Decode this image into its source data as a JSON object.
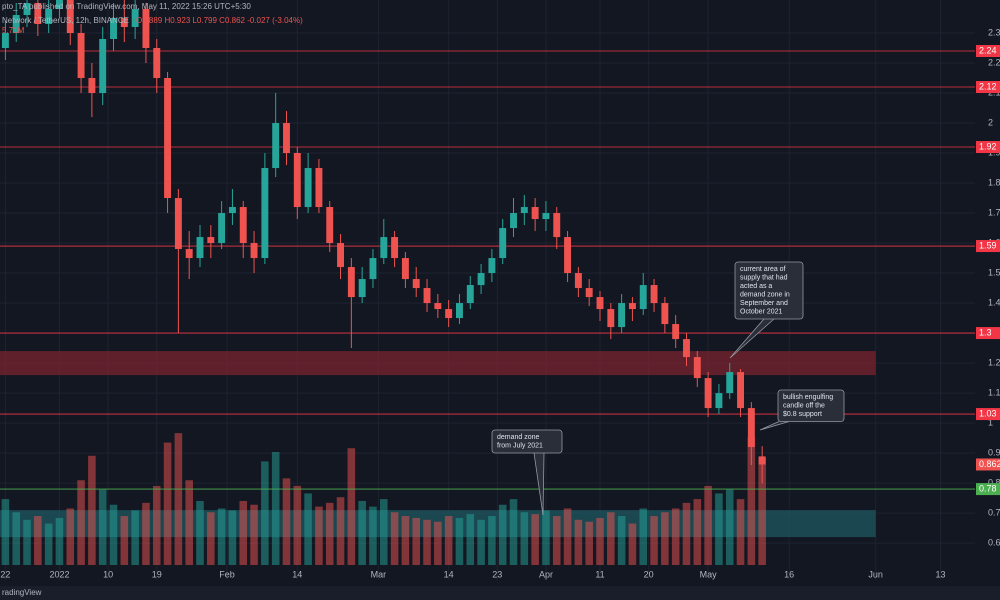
{
  "chart_data": {
    "type": "candlestick",
    "header": "pto_TA published on TradingView.com, May 11, 2022 15:26 UTC+5:30",
    "symbol": "Network / TetherUS, 12h, BINANCE",
    "ohlc_text": "O0.889 H0.923 L0.799 C0.862 -0.027 (-3.04%)",
    "volume_label": "5.71M",
    "footer": "radingView",
    "up_color": "#26a69a",
    "down_color": "#ef5350",
    "xlim": [
      "2021-12-21",
      "2022-06-24"
    ],
    "xticks": [
      {
        "value": "2021-12-22",
        "label": "22"
      },
      {
        "value": "2022-01-01",
        "label": "2022"
      },
      {
        "value": "2022-01-10",
        "label": "10"
      },
      {
        "value": "2022-01-19",
        "label": "19"
      },
      {
        "value": "2022-02-01",
        "label": "Feb"
      },
      {
        "value": "2022-02-14",
        "label": "14"
      },
      {
        "value": "2022-03-01",
        "label": "Mar"
      },
      {
        "value": "2022-03-14",
        "label": "14"
      },
      {
        "value": "2022-03-23",
        "label": "23"
      },
      {
        "value": "2022-04-01",
        "label": "Apr"
      },
      {
        "value": "2022-04-11",
        "label": "11"
      },
      {
        "value": "2022-04-20",
        "label": "20"
      },
      {
        "value": "2022-05-01",
        "label": "May"
      },
      {
        "value": "2022-05-16",
        "label": "16"
      },
      {
        "value": "2022-06-01",
        "label": "Jun"
      },
      {
        "value": "2022-06-13",
        "label": "13"
      }
    ],
    "ylim": [
      0.477,
      2.41
    ],
    "yticks": [
      0.6,
      0.7,
      0.8,
      0.9,
      1.0,
      1.1,
      1.2,
      1.3,
      1.4,
      1.5,
      1.6,
      1.7,
      1.8,
      1.9,
      2.0,
      2.1,
      2.2,
      2.3
    ],
    "grid": true,
    "volume_ylim": [
      0,
      30
    ],
    "x": [
      "2021-12-22",
      "2021-12-24",
      "2021-12-26",
      "2021-12-28",
      "2021-12-30",
      "2022-01-01",
      "2022-01-03",
      "2022-01-05",
      "2022-01-07",
      "2022-01-09",
      "2022-01-11",
      "2022-01-13",
      "2022-01-15",
      "2022-01-17",
      "2022-01-19",
      "2022-01-21",
      "2022-01-23",
      "2022-01-25",
      "2022-01-27",
      "2022-01-29",
      "2022-01-31",
      "2022-02-02",
      "2022-02-04",
      "2022-02-06",
      "2022-02-08",
      "2022-02-10",
      "2022-02-12",
      "2022-02-14",
      "2022-02-16",
      "2022-02-18",
      "2022-02-20",
      "2022-02-22",
      "2022-02-24",
      "2022-02-26",
      "2022-02-28",
      "2022-03-02",
      "2022-03-04",
      "2022-03-06",
      "2022-03-08",
      "2022-03-10",
      "2022-03-12",
      "2022-03-14",
      "2022-03-16",
      "2022-03-18",
      "2022-03-20",
      "2022-03-22",
      "2022-03-24",
      "2022-03-26",
      "2022-03-28",
      "2022-03-30",
      "2022-04-01",
      "2022-04-03",
      "2022-04-05",
      "2022-04-07",
      "2022-04-09",
      "2022-04-11",
      "2022-04-13",
      "2022-04-15",
      "2022-04-17",
      "2022-04-19",
      "2022-04-21",
      "2022-04-23",
      "2022-04-25",
      "2022-04-27",
      "2022-04-29",
      "2022-05-01",
      "2022-05-03",
      "2022-05-05",
      "2022-05-07",
      "2022-05-09",
      "2022-05-11"
    ],
    "candles": [
      [
        2.25,
        2.34,
        2.21,
        2.3
      ],
      [
        2.3,
        2.4,
        2.27,
        2.36
      ],
      [
        2.36,
        2.44,
        2.32,
        2.4
      ],
      [
        2.4,
        2.43,
        2.29,
        2.33
      ],
      [
        2.33,
        2.42,
        2.3,
        2.38
      ],
      [
        2.38,
        2.46,
        2.35,
        2.42
      ],
      [
        2.42,
        2.44,
        2.26,
        2.3
      ],
      [
        2.3,
        2.33,
        2.1,
        2.15
      ],
      [
        2.15,
        2.2,
        2.02,
        2.1
      ],
      [
        2.1,
        2.32,
        2.06,
        2.28
      ],
      [
        2.28,
        2.4,
        2.24,
        2.35
      ],
      [
        2.35,
        2.41,
        2.27,
        2.32
      ],
      [
        2.32,
        2.43,
        2.28,
        2.38
      ],
      [
        2.38,
        2.4,
        2.2,
        2.25
      ],
      [
        2.25,
        2.28,
        2.1,
        2.15
      ],
      [
        2.15,
        2.17,
        1.7,
        1.75
      ],
      [
        1.75,
        1.78,
        1.3,
        1.58
      ],
      [
        1.58,
        1.64,
        1.48,
        1.55
      ],
      [
        1.55,
        1.66,
        1.52,
        1.62
      ],
      [
        1.62,
        1.66,
        1.55,
        1.6
      ],
      [
        1.6,
        1.74,
        1.58,
        1.7
      ],
      [
        1.7,
        1.78,
        1.66,
        1.72
      ],
      [
        1.72,
        1.74,
        1.55,
        1.6
      ],
      [
        1.6,
        1.64,
        1.5,
        1.55
      ],
      [
        1.55,
        1.9,
        1.53,
        1.85
      ],
      [
        1.85,
        2.1,
        1.82,
        2.0
      ],
      [
        2.0,
        2.04,
        1.86,
        1.9
      ],
      [
        1.9,
        1.92,
        1.68,
        1.72
      ],
      [
        1.72,
        1.9,
        1.7,
        1.85
      ],
      [
        1.85,
        1.88,
        1.7,
        1.72
      ],
      [
        1.72,
        1.74,
        1.57,
        1.6
      ],
      [
        1.6,
        1.63,
        1.48,
        1.52
      ],
      [
        1.52,
        1.55,
        1.25,
        1.42
      ],
      [
        1.42,
        1.52,
        1.4,
        1.48
      ],
      [
        1.48,
        1.58,
        1.45,
        1.55
      ],
      [
        1.55,
        1.68,
        1.53,
        1.62
      ],
      [
        1.62,
        1.64,
        1.52,
        1.55
      ],
      [
        1.55,
        1.57,
        1.45,
        1.48
      ],
      [
        1.48,
        1.52,
        1.42,
        1.45
      ],
      [
        1.45,
        1.48,
        1.37,
        1.4
      ],
      [
        1.4,
        1.43,
        1.35,
        1.38
      ],
      [
        1.38,
        1.41,
        1.32,
        1.35
      ],
      [
        1.35,
        1.43,
        1.33,
        1.4
      ],
      [
        1.4,
        1.49,
        1.38,
        1.46
      ],
      [
        1.46,
        1.53,
        1.43,
        1.5
      ],
      [
        1.5,
        1.58,
        1.47,
        1.55
      ],
      [
        1.55,
        1.68,
        1.53,
        1.65
      ],
      [
        1.65,
        1.75,
        1.62,
        1.7
      ],
      [
        1.7,
        1.76,
        1.66,
        1.72
      ],
      [
        1.72,
        1.75,
        1.64,
        1.68
      ],
      [
        1.68,
        1.74,
        1.64,
        1.7
      ],
      [
        1.7,
        1.72,
        1.58,
        1.62
      ],
      [
        1.62,
        1.64,
        1.47,
        1.5
      ],
      [
        1.5,
        1.52,
        1.42,
        1.45
      ],
      [
        1.45,
        1.48,
        1.39,
        1.42
      ],
      [
        1.42,
        1.44,
        1.34,
        1.38
      ],
      [
        1.38,
        1.4,
        1.28,
        1.32
      ],
      [
        1.32,
        1.43,
        1.3,
        1.4
      ],
      [
        1.4,
        1.42,
        1.34,
        1.38
      ],
      [
        1.38,
        1.5,
        1.36,
        1.46
      ],
      [
        1.46,
        1.48,
        1.37,
        1.4
      ],
      [
        1.4,
        1.42,
        1.3,
        1.33
      ],
      [
        1.33,
        1.36,
        1.25,
        1.28
      ],
      [
        1.28,
        1.3,
        1.19,
        1.22
      ],
      [
        1.22,
        1.24,
        1.12,
        1.15
      ],
      [
        1.15,
        1.17,
        1.02,
        1.05
      ],
      [
        1.05,
        1.13,
        1.03,
        1.1
      ],
      [
        1.1,
        1.2,
        1.08,
        1.17
      ],
      [
        1.17,
        1.18,
        1.02,
        1.05
      ],
      [
        1.05,
        1.07,
        0.86,
        0.92
      ],
      [
        0.889,
        0.923,
        0.799,
        0.862
      ]
    ],
    "volume": [
      3.5,
      2.8,
      2.4,
      2.6,
      2.2,
      2.5,
      3.0,
      4.5,
      5.8,
      4.0,
      3.2,
      2.6,
      2.9,
      3.3,
      4.2,
      6.5,
      7.0,
      4.5,
      3.4,
      2.8,
      3.0,
      2.9,
      3.4,
      3.2,
      5.5,
      6.0,
      4.6,
      4.2,
      3.8,
      3.1,
      3.3,
      3.6,
      6.2,
      3.4,
      3.1,
      3.5,
      2.8,
      2.6,
      2.5,
      2.4,
      2.3,
      2.6,
      2.5,
      2.7,
      2.4,
      2.6,
      3.2,
      3.5,
      2.8,
      2.7,
      2.9,
      2.6,
      3.0,
      2.4,
      2.3,
      2.5,
      2.8,
      2.6,
      2.2,
      3.0,
      2.6,
      2.8,
      3.0,
      3.3,
      3.5,
      4.2,
      3.8,
      4.0,
      3.5,
      6.8,
      5.71
    ],
    "levels": [
      2.24,
      2.12,
      1.92,
      1.59,
      1.3,
      1.03
    ],
    "level_color": "#f23645",
    "support": 0.78,
    "support_color": "#4caf50",
    "zones": [
      {
        "low": 1.16,
        "high": 1.24,
        "color": "#7a2430"
      },
      {
        "low": 0.62,
        "high": 0.71,
        "color": "#1e5860"
      }
    ],
    "callouts": [
      {
        "lines": [
          "current area of",
          "supply that had",
          "acted as a",
          "demand zone in",
          "September and",
          "October 2021"
        ]
      },
      {
        "lines": [
          "bullish engulfing",
          "candle off the",
          "$0.8 support"
        ]
      },
      {
        "lines": [
          "demand zone",
          "from July 2021"
        ]
      }
    ]
  }
}
